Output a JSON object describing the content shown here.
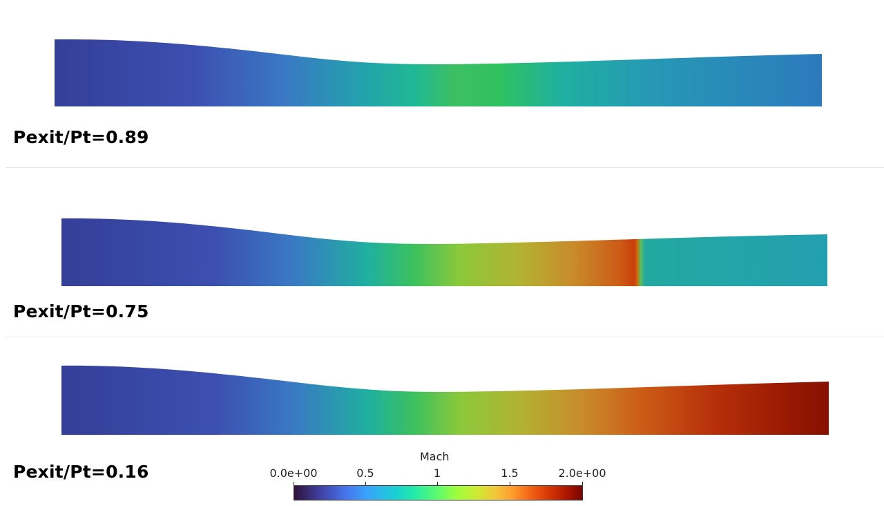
{
  "panels": [
    {
      "caption": "Pexit/Pt=0.89"
    },
    {
      "caption": "Pexit/Pt=0.75"
    },
    {
      "caption": "Pexit/Pt=0.16"
    }
  ],
  "colorbar": {
    "title": "Mach",
    "ticks": [
      "0.0e+00",
      "0.5",
      "1",
      "1.5",
      "2.0e+00"
    ],
    "range": [
      0,
      2
    ]
  },
  "colors": {
    "blue": "#3a4ea6",
    "green": "#3cc15e",
    "red": "#8b1200"
  }
}
